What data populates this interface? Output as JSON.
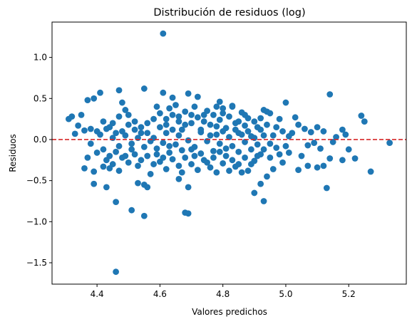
{
  "chart_data": {
    "type": "scatter",
    "title": "Distribución de residuos (log)",
    "xlabel": "Valores predichos",
    "ylabel": "Residuos",
    "xlim": [
      4.257,
      5.383
    ],
    "ylim": [
      -1.76,
      1.43
    ],
    "xticks": [
      4.4,
      4.6,
      4.8,
      5.0,
      5.2
    ],
    "xtick_labels": [
      "4.4",
      "4.6",
      "4.8",
      "5.0",
      "5.2"
    ],
    "yticks": [
      -1.5,
      -1.0,
      -0.5,
      0.0,
      0.5,
      1.0
    ],
    "ytick_labels": [
      "−1.5",
      "−1.0",
      "−0.5",
      "0.0",
      "0.5",
      "1.0"
    ],
    "grid": false,
    "reference_line": {
      "y": 0.0,
      "style": "dashed",
      "color": "#d62728"
    },
    "marker_color": "#1f77b4",
    "points": [
      {
        "x": 4.61,
        "y": 1.29
      },
      {
        "x": 4.46,
        "y": -1.61
      },
      {
        "x": 4.55,
        "y": -0.93
      },
      {
        "x": 4.51,
        "y": -0.86
      },
      {
        "x": 4.68,
        "y": -0.89
      },
      {
        "x": 4.69,
        "y": -0.9
      },
      {
        "x": 4.46,
        "y": -0.76
      },
      {
        "x": 4.93,
        "y": -0.75
      },
      {
        "x": 4.9,
        "y": -0.65
      },
      {
        "x": 5.13,
        "y": -0.59
      },
      {
        "x": 5.27,
        "y": -0.39
      },
      {
        "x": 5.33,
        "y": -0.04
      },
      {
        "x": 5.25,
        "y": 0.22
      },
      {
        "x": 5.24,
        "y": 0.29
      },
      {
        "x": 5.14,
        "y": 0.55
      },
      {
        "x": 4.55,
        "y": 0.62
      },
      {
        "x": 4.47,
        "y": 0.6
      },
      {
        "x": 4.41,
        "y": 0.57
      },
      {
        "x": 4.69,
        "y": 0.56
      },
      {
        "x": 4.61,
        "y": 0.57
      },
      {
        "x": 4.64,
        "y": 0.51
      },
      {
        "x": 4.37,
        "y": 0.48
      },
      {
        "x": 4.39,
        "y": 0.5
      },
      {
        "x": 5.0,
        "y": 0.45
      },
      {
        "x": 4.31,
        "y": 0.25
      },
      {
        "x": 4.32,
        "y": 0.28
      },
      {
        "x": 4.35,
        "y": 0.3
      },
      {
        "x": 4.34,
        "y": 0.17
      },
      {
        "x": 4.33,
        "y": 0.07
      },
      {
        "x": 4.36,
        "y": 0.11
      },
      {
        "x": 4.38,
        "y": -0.05
      },
      {
        "x": 4.37,
        "y": -0.22
      },
      {
        "x": 4.36,
        "y": -0.35
      },
      {
        "x": 4.39,
        "y": -0.39
      },
      {
        "x": 4.39,
        "y": -0.54
      },
      {
        "x": 4.43,
        "y": -0.58
      },
      {
        "x": 4.42,
        "y": -0.33
      },
      {
        "x": 4.44,
        "y": -0.35
      },
      {
        "x": 4.53,
        "y": -0.53
      },
      {
        "x": 4.55,
        "y": -0.55
      },
      {
        "x": 4.56,
        "y": -0.58
      },
      {
        "x": 4.66,
        "y": -0.48
      },
      {
        "x": 4.69,
        "y": -0.58
      },
      {
        "x": 4.92,
        "y": -0.54
      },
      {
        "x": 4.94,
        "y": -0.45
      },
      {
        "x": 4.96,
        "y": -0.36
      },
      {
        "x": 5.04,
        "y": -0.37
      },
      {
        "x": 5.07,
        "y": -0.32
      },
      {
        "x": 5.1,
        "y": -0.34
      },
      {
        "x": 5.12,
        "y": -0.32
      },
      {
        "x": 5.14,
        "y": -0.23
      },
      {
        "x": 5.18,
        "y": -0.25
      },
      {
        "x": 5.2,
        "y": -0.12
      },
      {
        "x": 5.22,
        "y": -0.23
      },
      {
        "x": 5.19,
        "y": 0.06
      },
      {
        "x": 5.18,
        "y": 0.12
      },
      {
        "x": 5.16,
        "y": 0.03
      },
      {
        "x": 5.12,
        "y": 0.1
      },
      {
        "x": 5.1,
        "y": 0.15
      },
      {
        "x": 5.08,
        "y": 0.09
      },
      {
        "x": 5.06,
        "y": 0.13
      },
      {
        "x": 5.04,
        "y": 0.18
      },
      {
        "x": 5.03,
        "y": 0.27
      },
      {
        "x": 5.02,
        "y": 0.08
      },
      {
        "x": 5.07,
        "y": -0.07
      },
      {
        "x": 5.09,
        "y": -0.04
      },
      {
        "x": 5.11,
        "y": -0.11
      },
      {
        "x": 5.15,
        "y": -0.03
      },
      {
        "x": 5.05,
        "y": -0.2
      },
      {
        "x": 5.01,
        "y": -0.16
      },
      {
        "x": 4.99,
        "y": -0.28
      },
      {
        "x": 4.98,
        "y": -0.18
      },
      {
        "x": 4.97,
        "y": 0.15
      },
      {
        "x": 4.98,
        "y": 0.25
      },
      {
        "x": 4.95,
        "y": 0.32
      },
      {
        "x": 4.93,
        "y": 0.36
      },
      {
        "x": 4.92,
        "y": 0.26
      },
      {
        "x": 4.91,
        "y": 0.15
      },
      {
        "x": 4.93,
        "y": 0.05
      },
      {
        "x": 4.95,
        "y": -0.05
      },
      {
        "x": 4.92,
        "y": -0.18
      },
      {
        "x": 4.9,
        "y": -0.26
      },
      {
        "x": 4.88,
        "y": -0.38
      },
      {
        "x": 4.86,
        "y": -0.4
      },
      {
        "x": 4.84,
        "y": -0.33
      },
      {
        "x": 4.82,
        "y": -0.38
      },
      {
        "x": 4.8,
        "y": -0.29
      },
      {
        "x": 4.78,
        "y": -0.4
      },
      {
        "x": 4.76,
        "y": -0.34
      },
      {
        "x": 4.74,
        "y": -0.25
      },
      {
        "x": 4.72,
        "y": -0.37
      },
      {
        "x": 4.7,
        "y": -0.3
      },
      {
        "x": 4.68,
        "y": -0.22
      },
      {
        "x": 4.66,
        "y": -0.32
      },
      {
        "x": 4.64,
        "y": -0.24
      },
      {
        "x": 4.62,
        "y": -0.36
      },
      {
        "x": 4.6,
        "y": -0.27
      },
      {
        "x": 4.58,
        "y": -0.3
      },
      {
        "x": 4.56,
        "y": -0.2
      },
      {
        "x": 4.54,
        "y": -0.25
      },
      {
        "x": 4.52,
        "y": -0.18
      },
      {
        "x": 4.5,
        "y": -0.28
      },
      {
        "x": 4.48,
        "y": -0.22
      },
      {
        "x": 4.46,
        "y": -0.15
      },
      {
        "x": 4.44,
        "y": -0.2
      },
      {
        "x": 4.42,
        "y": -0.12
      },
      {
        "x": 4.4,
        "y": -0.16
      },
      {
        "x": 4.43,
        "y": 0.13
      },
      {
        "x": 4.45,
        "y": 0.2
      },
      {
        "x": 4.47,
        "y": 0.28
      },
      {
        "x": 4.49,
        "y": 0.36
      },
      {
        "x": 4.48,
        "y": 0.45
      },
      {
        "x": 4.5,
        "y": 0.3
      },
      {
        "x": 4.52,
        "y": 0.22
      },
      {
        "x": 4.54,
        "y": 0.15
      },
      {
        "x": 4.56,
        "y": 0.08
      },
      {
        "x": 4.58,
        "y": 0.25
      },
      {
        "x": 4.59,
        "y": 0.4
      },
      {
        "x": 4.6,
        "y": 0.32
      },
      {
        "x": 4.62,
        "y": 0.18
      },
      {
        "x": 4.63,
        "y": 0.38
      },
      {
        "x": 4.65,
        "y": 0.42
      },
      {
        "x": 4.66,
        "y": 0.28
      },
      {
        "x": 4.67,
        "y": 0.12
      },
      {
        "x": 4.68,
        "y": 0.34
      },
      {
        "x": 4.7,
        "y": 0.2
      },
      {
        "x": 4.71,
        "y": 0.4
      },
      {
        "x": 4.72,
        "y": 0.27
      },
      {
        "x": 4.73,
        "y": 0.09
      },
      {
        "x": 4.75,
        "y": 0.35
      },
      {
        "x": 4.76,
        "y": 0.18
      },
      {
        "x": 4.77,
        "y": 0.3
      },
      {
        "x": 4.78,
        "y": 0.06
      },
      {
        "x": 4.79,
        "y": 0.24
      },
      {
        "x": 4.8,
        "y": 0.38
      },
      {
        "x": 4.81,
        "y": 0.14
      },
      {
        "x": 4.82,
        "y": 0.28
      },
      {
        "x": 4.83,
        "y": 0.41
      },
      {
        "x": 4.84,
        "y": 0.2
      },
      {
        "x": 4.85,
        "y": 0.08
      },
      {
        "x": 4.86,
        "y": 0.33
      },
      {
        "x": 4.87,
        "y": 0.17
      },
      {
        "x": 4.88,
        "y": 0.26
      },
      {
        "x": 4.89,
        "y": 0.04
      },
      {
        "x": 4.9,
        "y": 0.22
      },
      {
        "x": 4.91,
        "y": -0.06
      },
      {
        "x": 4.89,
        "y": -0.12
      },
      {
        "x": 4.87,
        "y": -0.03
      },
      {
        "x": 4.85,
        "y": -0.15
      },
      {
        "x": 4.83,
        "y": -0.08
      },
      {
        "x": 4.81,
        "y": -0.2
      },
      {
        "x": 4.79,
        "y": -0.05
      },
      {
        "x": 4.77,
        "y": -0.14
      },
      {
        "x": 4.75,
        "y": -0.02
      },
      {
        "x": 4.73,
        "y": -0.17
      },
      {
        "x": 4.71,
        "y": -0.09
      },
      {
        "x": 4.69,
        "y": -0.01
      },
      {
        "x": 4.67,
        "y": -0.13
      },
      {
        "x": 4.65,
        "y": -0.06
      },
      {
        "x": 4.63,
        "y": -0.16
      },
      {
        "x": 4.61,
        "y": -0.04
      },
      {
        "x": 4.59,
        "y": -0.11
      },
      {
        "x": 4.57,
        "y": -0.02
      },
      {
        "x": 4.55,
        "y": -0.09
      },
      {
        "x": 4.53,
        "y": 0.02
      },
      {
        "x": 4.51,
        "y": -0.05
      },
      {
        "x": 4.49,
        "y": 0.05
      },
      {
        "x": 4.47,
        "y": -0.08
      },
      {
        "x": 4.45,
        "y": 0.02
      },
      {
        "x": 4.41,
        "y": 0.06
      },
      {
        "x": 4.4,
        "y": 0.1
      },
      {
        "x": 4.38,
        "y": 0.13
      },
      {
        "x": 4.72,
        "y": 0.52
      },
      {
        "x": 4.79,
        "y": 0.46
      },
      {
        "x": 4.83,
        "y": 0.4
      },
      {
        "x": 4.94,
        "y": 0.34
      },
      {
        "x": 4.73,
        "y": 0.12
      },
      {
        "x": 4.74,
        "y": 0.22
      },
      {
        "x": 4.76,
        "y": 0.05
      },
      {
        "x": 4.78,
        "y": 0.16
      },
      {
        "x": 4.8,
        "y": 0.1
      },
      {
        "x": 4.82,
        "y": 0.03
      },
      {
        "x": 4.84,
        "y": 0.12
      },
      {
        "x": 4.86,
        "y": 0.06
      },
      {
        "x": 4.88,
        "y": 0.1
      },
      {
        "x": 4.9,
        "y": 0.02
      },
      {
        "x": 4.92,
        "y": 0.12
      },
      {
        "x": 4.94,
        "y": 0.18
      },
      {
        "x": 4.96,
        "y": 0.05
      },
      {
        "x": 4.97,
        "y": -0.1
      },
      {
        "x": 4.95,
        "y": -0.22
      },
      {
        "x": 4.93,
        "y": -0.12
      },
      {
        "x": 4.91,
        "y": -0.2
      },
      {
        "x": 4.7,
        "y": -0.12
      },
      {
        "x": 4.66,
        "y": 0.05
      },
      {
        "x": 4.64,
        "y": 0.12
      },
      {
        "x": 4.62,
        "y": 0.08
      },
      {
        "x": 4.6,
        "y": 0.15
      },
      {
        "x": 4.58,
        "y": 0.02
      },
      {
        "x": 4.56,
        "y": 0.2
      },
      {
        "x": 4.54,
        "y": 0.08
      },
      {
        "x": 4.52,
        "y": 0.12
      },
      {
        "x": 4.5,
        "y": 0.18
      },
      {
        "x": 4.48,
        "y": 0.1
      },
      {
        "x": 4.46,
        "y": 0.08
      },
      {
        "x": 4.44,
        "y": 0.15
      },
      {
        "x": 4.42,
        "y": 0.22
      },
      {
        "x": 4.43,
        "y": -0.25
      },
      {
        "x": 4.45,
        "y": -0.3
      },
      {
        "x": 4.47,
        "y": -0.38
      },
      {
        "x": 4.49,
        "y": -0.2
      },
      {
        "x": 4.51,
        "y": -0.12
      },
      {
        "x": 4.53,
        "y": -0.32
      },
      {
        "x": 4.57,
        "y": -0.42
      },
      {
        "x": 4.59,
        "y": -0.18
      },
      {
        "x": 4.61,
        "y": -0.22
      },
      {
        "x": 4.63,
        "y": -0.08
      },
      {
        "x": 4.67,
        "y": -0.4
      },
      {
        "x": 4.71,
        "y": -0.2
      },
      {
        "x": 4.75,
        "y": -0.28
      },
      {
        "x": 4.77,
        "y": -0.22
      },
      {
        "x": 4.79,
        "y": -0.15
      },
      {
        "x": 4.81,
        "y": -0.11
      },
      {
        "x": 4.83,
        "y": -0.25
      },
      {
        "x": 4.85,
        "y": -0.3
      },
      {
        "x": 4.87,
        "y": -0.22
      },
      {
        "x": 4.89,
        "y": -0.3
      },
      {
        "x": 5.0,
        "y": -0.08
      },
      {
        "x": 5.01,
        "y": 0.04
      },
      {
        "x": 4.99,
        "y": 0.1
      },
      {
        "x": 4.74,
        "y": 0.3
      },
      {
        "x": 4.7,
        "y": 0.3
      },
      {
        "x": 4.68,
        "y": 0.18
      },
      {
        "x": 4.66,
        "y": 0.22
      },
      {
        "x": 4.64,
        "y": 0.3
      },
      {
        "x": 4.62,
        "y": 0.25
      },
      {
        "x": 4.85,
        "y": 0.22
      },
      {
        "x": 4.87,
        "y": 0.3
      },
      {
        "x": 4.8,
        "y": 0.32
      },
      {
        "x": 4.78,
        "y": 0.4
      }
    ]
  }
}
